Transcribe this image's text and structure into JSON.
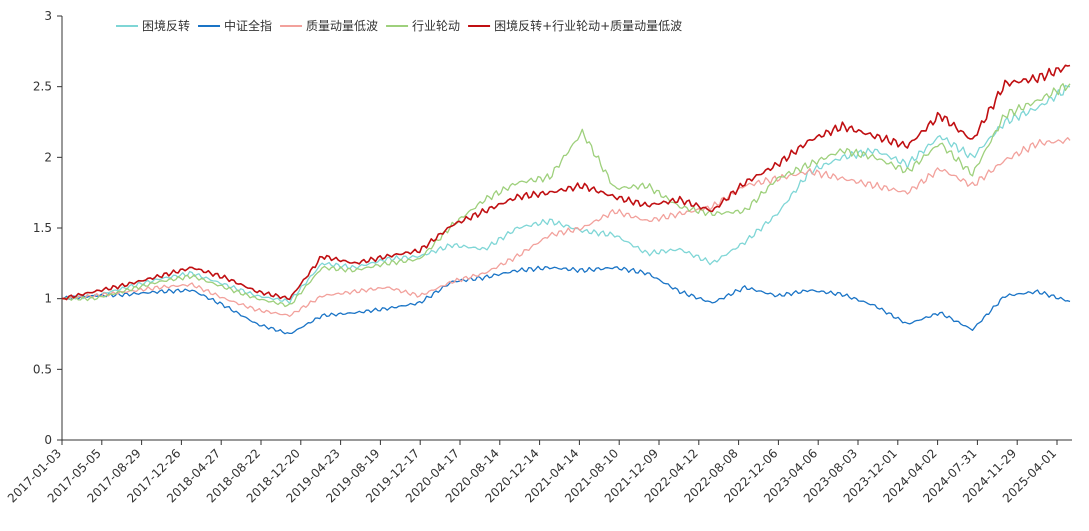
{
  "chart_data": {
    "type": "line",
    "title": "",
    "xlabel": "",
    "ylabel": "",
    "ylim": [
      0,
      3
    ],
    "y_ticks": [
      "0",
      "0.5",
      "1",
      "1.5",
      "2",
      "2.5",
      "3"
    ],
    "grid": false,
    "legend_position": "top-left",
    "x_ticks": [
      "2017-01-03",
      "2017-05-05",
      "2017-08-29",
      "2017-12-26",
      "2018-04-27",
      "2018-08-22",
      "2018-12-20",
      "2019-04-23",
      "2019-08-19",
      "2019-12-17",
      "2020-04-17",
      "2020-08-14",
      "2020-12-14",
      "2021-04-14",
      "2021-08-10",
      "2021-12-09",
      "2022-04-12",
      "2022-08-08",
      "2022-12-06",
      "2023-04-06",
      "2023-08-03",
      "2023-12-01",
      "2024-04-02",
      "2024-07-31",
      "2024-11-29",
      "2025-04-01"
    ],
    "series": [
      {
        "name": "困境反转",
        "color": "#7fd6d6",
        "values": [
          1.0,
          1.02,
          1.08,
          1.14,
          1.18,
          1.1,
          1.02,
          0.98,
          1.25,
          1.22,
          1.28,
          1.3,
          1.38,
          1.35,
          1.5,
          1.55,
          1.48,
          1.45,
          1.32,
          1.35,
          1.25,
          1.4,
          1.6,
          1.9,
          2.0,
          2.05,
          1.95,
          2.15,
          2.0,
          2.25,
          2.35,
          2.5
        ]
      },
      {
        "name": "中证全指",
        "color": "#1a74c6",
        "values": [
          1.0,
          1.02,
          1.03,
          1.05,
          1.06,
          0.95,
          0.82,
          0.75,
          0.88,
          0.9,
          0.93,
          0.97,
          1.12,
          1.15,
          1.2,
          1.22,
          1.2,
          1.22,
          1.18,
          1.05,
          0.97,
          1.08,
          1.02,
          1.06,
          1.03,
          0.95,
          0.82,
          0.9,
          0.78,
          1.02,
          1.05,
          0.98
        ]
      },
      {
        "name": "质量动量低波",
        "color": "#f2a19c",
        "values": [
          1.0,
          1.02,
          1.05,
          1.08,
          1.1,
          1.0,
          0.92,
          0.88,
          1.02,
          1.05,
          1.08,
          1.02,
          1.12,
          1.18,
          1.3,
          1.45,
          1.5,
          1.62,
          1.55,
          1.6,
          1.65,
          1.8,
          1.85,
          1.9,
          1.85,
          1.8,
          1.75,
          1.92,
          1.8,
          1.98,
          2.1,
          2.12
        ]
      },
      {
        "name": "行业轮动",
        "color": "#9ed07c",
        "values": [
          1.0,
          1.0,
          1.06,
          1.12,
          1.16,
          1.08,
          1.0,
          0.95,
          1.22,
          1.2,
          1.25,
          1.28,
          1.52,
          1.7,
          1.82,
          1.86,
          2.18,
          1.78,
          1.8,
          1.65,
          1.6,
          1.62,
          1.85,
          1.95,
          2.05,
          2.0,
          1.9,
          2.1,
          1.88,
          2.3,
          2.4,
          2.52
        ]
      },
      {
        "name": "困境反转+行业轮动+质量动量低波",
        "color": "#c00f12",
        "values": [
          1.0,
          1.05,
          1.1,
          1.16,
          1.22,
          1.15,
          1.05,
          1.0,
          1.3,
          1.25,
          1.3,
          1.34,
          1.52,
          1.62,
          1.72,
          1.75,
          1.8,
          1.72,
          1.66,
          1.7,
          1.62,
          1.82,
          1.95,
          2.12,
          2.22,
          2.15,
          2.08,
          2.3,
          2.12,
          2.52,
          2.56,
          2.65
        ]
      }
    ]
  }
}
